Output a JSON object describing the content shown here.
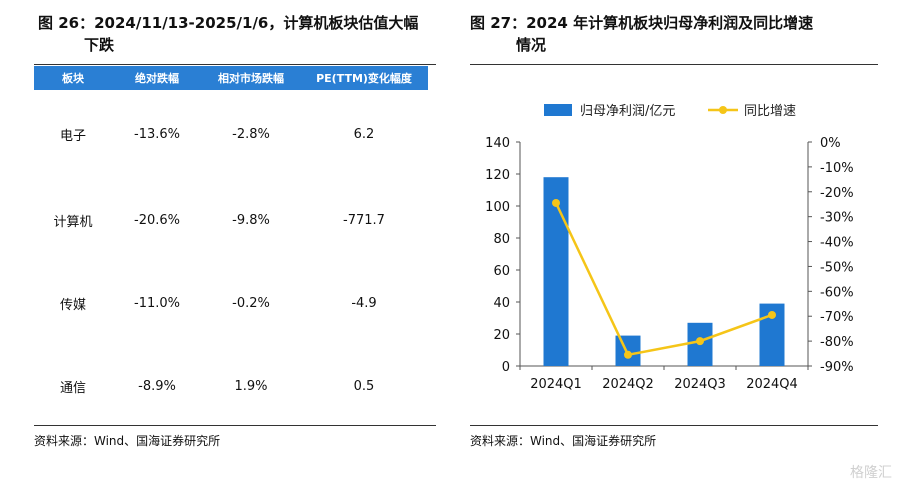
{
  "left_title": {
    "line1": "图 26：2024/11/13-2025/1/6，计算机板块估值大幅",
    "line2": "下跌"
  },
  "right_title": {
    "line1": "图 27：2024 年计算机板块归母净利润及同比增速",
    "line2": "情况"
  },
  "table": {
    "headers": [
      "板块",
      "绝对跌幅",
      "相对市场跌幅",
      "PE(TTM)变化幅度"
    ],
    "rows": [
      [
        "电子",
        "-13.6%",
        "-2.8%",
        "6.2"
      ],
      [
        "计算机",
        "-20.6%",
        "-9.8%",
        "-771.7"
      ],
      [
        "传媒",
        "-11.0%",
        "-0.2%",
        "-4.9"
      ],
      [
        "通信",
        "-8.9%",
        "1.9%",
        "0.5"
      ]
    ]
  },
  "source_left": "资料来源：Wind、国海证券研究所",
  "source_right": "资料来源：Wind、国海证券研究所",
  "watermark": "格隆汇",
  "colors": {
    "bar": "#1f78d1",
    "line": "#f5c518",
    "header": "#2a7fd4"
  },
  "chart_data": {
    "type": "bar+line",
    "title": "2024 年计算机板块归母净利润及同比增速情况",
    "categories": [
      "2024Q1",
      "2024Q2",
      "2024Q3",
      "2024Q4"
    ],
    "series": [
      {
        "name": "归母净利润/亿元",
        "kind": "bar",
        "axis": "left",
        "values": [
          118,
          19,
          27,
          39
        ]
      },
      {
        "name": "同比增速",
        "kind": "line",
        "axis": "right",
        "values": [
          -24.5,
          -85.5,
          -80.0,
          -69.5
        ]
      }
    ],
    "left_axis": {
      "min": 0,
      "max": 140,
      "ticks": [
        "0",
        "20",
        "40",
        "60",
        "80",
        "100",
        "120",
        "140"
      ]
    },
    "right_axis": {
      "min": -90,
      "max": 0,
      "ticks": [
        "-90%",
        "-80%",
        "-70%",
        "-60%",
        "-50%",
        "-40%",
        "-30%",
        "-20%",
        "-10%",
        "0%"
      ]
    },
    "legend_position": "top",
    "grid": false
  }
}
